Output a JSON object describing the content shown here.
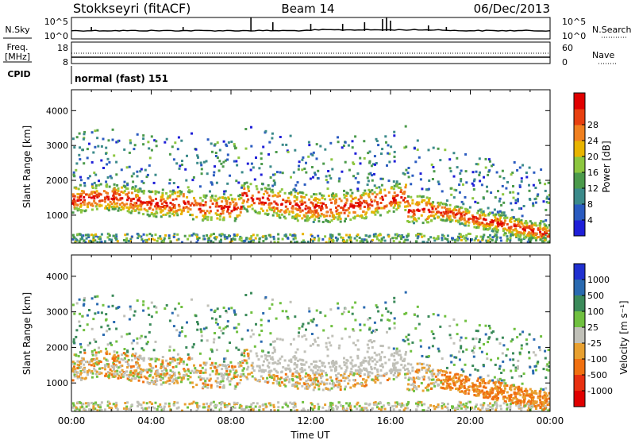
{
  "header": {
    "station": "Stokkseyri (fitACF)",
    "beam": "Beam 14",
    "date": "06/Dec/2013"
  },
  "nsky_panel": {
    "label": "N.Sky",
    "tick_top": "10^5",
    "tick_bottom": "10^0",
    "right_tick_top": "10^5",
    "right_tick_bottom": "10^0",
    "right_label": "N.Search"
  },
  "freq_panel": {
    "label_line1": "Freq.",
    "label_line2": "[MHz]",
    "tick_top": "18",
    "tick_bottom": "8",
    "right_tick_top": "60",
    "right_tick_bottom": "0",
    "right_label": "Nave"
  },
  "cpid": {
    "label": "CPID",
    "value": "normal (fast) 151"
  },
  "chart_data": [
    {
      "type": "heatmap",
      "name": "power",
      "ylabel": "Slant Range [km]",
      "ylim": [
        200,
        4600
      ],
      "yticks": [
        "1000",
        "2000",
        "3000",
        "4000"
      ],
      "colorbar_label": "Power [dB]",
      "colorbar_ticks": [
        "4",
        "8",
        "12",
        "16",
        "20",
        "24",
        "28"
      ],
      "colors": [
        "#1f1fd8",
        "#2a5bc0",
        "#3b8a8a",
        "#4b9a4b",
        "#8cc63f",
        "#e8b400",
        "#f08020",
        "#e84010",
        "#e00000"
      ]
    },
    {
      "type": "heatmap",
      "name": "velocity",
      "ylabel": "Slant Range [km]",
      "ylim": [
        200,
        4600
      ],
      "yticks": [
        "1000",
        "2000",
        "3000",
        "4000"
      ],
      "colorbar_label": "Velocity [m s⁻¹]",
      "colorbar_ticks": [
        "1000",
        "500",
        "100",
        "25",
        "-25",
        "-100",
        "-500",
        "-1000"
      ],
      "colors": [
        "#2030d0",
        "#2a6ab0",
        "#3b8a5a",
        "#70c040",
        "#c0c0b8",
        "#e8a030",
        "#f07010",
        "#e83010",
        "#e00000"
      ],
      "xlabel": "Time UT",
      "xticks": [
        "00:00",
        "04:00",
        "08:00",
        "12:00",
        "16:00",
        "20:00",
        "00:00"
      ]
    }
  ]
}
